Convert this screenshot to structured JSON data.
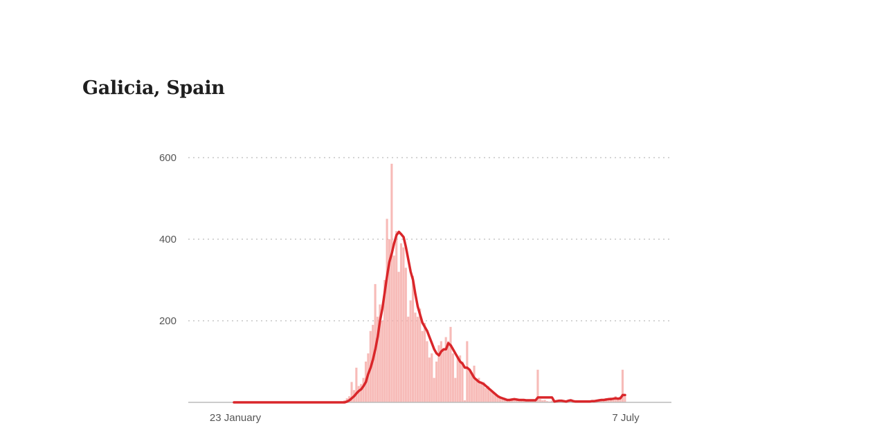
{
  "title": "Galicia, Spain",
  "chart_data": {
    "type": "bar",
    "title": "Galicia, Spain",
    "xlabel": "",
    "ylabel": "",
    "x_start": "23 January",
    "x_end": "7 July",
    "x_tick_labels": [
      "23 January",
      "7 July"
    ],
    "y_ticks": [
      200,
      400,
      600
    ],
    "ylim": [
      0,
      600
    ],
    "grid": true,
    "colors": {
      "bars": "#f5aaa6",
      "line": "#d9262a",
      "grid": "#bbbbbb",
      "axis": "#bbbbbb"
    },
    "series": [
      {
        "kind": "bar",
        "values": [
          0,
          0,
          0,
          0,
          0,
          0,
          0,
          0,
          0,
          0,
          0,
          0,
          0,
          0,
          0,
          0,
          0,
          0,
          0,
          0,
          0,
          0,
          0,
          0,
          0,
          0,
          0,
          0,
          0,
          0,
          0,
          0,
          0,
          0,
          0,
          0,
          0,
          0,
          0,
          0,
          0,
          0,
          0,
          0,
          0,
          0,
          0,
          5,
          10,
          15,
          50,
          30,
          85,
          40,
          45,
          60,
          100,
          120,
          175,
          190,
          290,
          210,
          240,
          200,
          300,
          450,
          400,
          585,
          360,
          420,
          320,
          390,
          380,
          330,
          210,
          250,
          310,
          220,
          210,
          230,
          175,
          195,
          150,
          110,
          120,
          60,
          100,
          140,
          150,
          130,
          160,
          150,
          185,
          120,
          60,
          110,
          115,
          100,
          5,
          150,
          80,
          70,
          90,
          55,
          60,
          45,
          50,
          35,
          40,
          30,
          25,
          20,
          15,
          12,
          8,
          6,
          4,
          8,
          5,
          10,
          6,
          3,
          8,
          5,
          4,
          6,
          3,
          5,
          4,
          80,
          8,
          5,
          6,
          3,
          2,
          4,
          1,
          3,
          5,
          2,
          4,
          1,
          6,
          3,
          2,
          1,
          2,
          3,
          1,
          2,
          1,
          3,
          4,
          2,
          5,
          3,
          8,
          6,
          10,
          7,
          12,
          8,
          15,
          10,
          14,
          80,
          15
        ]
      },
      {
        "kind": "line",
        "values": [
          0,
          0,
          0,
          0,
          0,
          0,
          0,
          0,
          0,
          0,
          0,
          0,
          0,
          0,
          0,
          0,
          0,
          0,
          0,
          0,
          0,
          0,
          0,
          0,
          0,
          0,
          0,
          0,
          0,
          0,
          0,
          0,
          0,
          0,
          0,
          0,
          0,
          0,
          0,
          0,
          0,
          0,
          0,
          0,
          0,
          0,
          0,
          0,
          2,
          5,
          10,
          15,
          22,
          28,
          32,
          40,
          50,
          70,
          85,
          105,
          130,
          160,
          200,
          230,
          270,
          310,
          345,
          365,
          390,
          410,
          418,
          412,
          405,
          380,
          350,
          320,
          300,
          265,
          235,
          215,
          195,
          185,
          175,
          160,
          145,
          130,
          120,
          115,
          125,
          130,
          130,
          145,
          140,
          130,
          120,
          110,
          100,
          95,
          85,
          85,
          80,
          70,
          60,
          55,
          50,
          48,
          45,
          40,
          35,
          30,
          25,
          20,
          15,
          12,
          10,
          8,
          6,
          6,
          7,
          8,
          7,
          6,
          6,
          6,
          5,
          5,
          5,
          5,
          5,
          12,
          12,
          12,
          12,
          12,
          12,
          12,
          2,
          3,
          4,
          4,
          3,
          2,
          4,
          5,
          3,
          2,
          2,
          2,
          2,
          2,
          2,
          2,
          3,
          3,
          4,
          5,
          6,
          6,
          7,
          8,
          8,
          9,
          10,
          9,
          10,
          18,
          18
        ]
      }
    ]
  }
}
